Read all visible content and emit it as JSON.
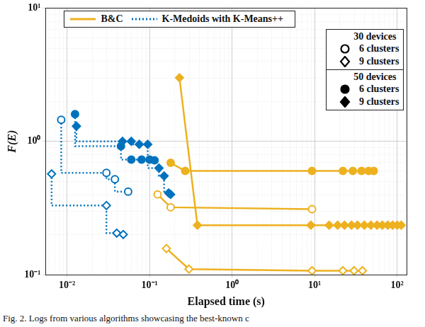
{
  "chart_data": {
    "type": "line",
    "log": true,
    "grid": true,
    "legend": "top",
    "x_label": "Elapsed time (s)",
    "y_label": "F(E)",
    "caption": "Fig. 2.  Logs from various algorithms showcasing the best-known c",
    "xlim": [
      0.0055,
      130
    ],
    "ylim": [
      0.1,
      10
    ],
    "xticks": [
      {
        "value": 0.01,
        "label": "10⁻²"
      },
      {
        "value": 0.1,
        "label": "10⁻¹"
      },
      {
        "value": 1,
        "label": "10⁰"
      },
      {
        "value": 10,
        "label": "10¹"
      },
      {
        "value": 100,
        "label": "10²"
      }
    ],
    "yticks": [
      {
        "value": 0.1,
        "label": "10⁻¹"
      },
      {
        "value": 1,
        "label": "10⁰"
      },
      {
        "value": 10,
        "label": "10¹"
      }
    ],
    "legend_groups": [
      {
        "title": "30 devices",
        "entries": [
          {
            "label": "6 clusters",
            "marker": "circle-open"
          },
          {
            "label": "9 clusters",
            "marker": "diamond-open"
          }
        ]
      },
      {
        "title": "50 devices",
        "entries": [
          {
            "label": "6 clusters",
            "marker": "circle"
          },
          {
            "label": "9 clusters",
            "marker": "diamond"
          }
        ]
      }
    ],
    "series": [
      {
        "name": "B&C",
        "devices": "30 devices",
        "clusters": "6 clusters",
        "type": "line",
        "color": "#edb120",
        "line_style": "solid",
        "marker": "circle-open",
        "x": [
          0.125,
          0.18,
          9.3
        ],
        "values": [
          0.4,
          0.32,
          0.31
        ]
      },
      {
        "name": "B&C",
        "devices": "30 devices",
        "clusters": "9 clusters",
        "type": "line",
        "color": "#edb120",
        "line_style": "solid",
        "marker": "diamond-open",
        "x": [
          0.16,
          0.3,
          9.3,
          22,
          30,
          38
        ],
        "values": [
          0.157,
          0.11,
          0.107,
          0.107,
          0.107,
          0.107
        ]
      },
      {
        "name": "B&C",
        "devices": "50 devices",
        "clusters": "6 clusters",
        "type": "line",
        "color": "#edb120",
        "line_style": "solid",
        "marker": "circle",
        "x": [
          0.18,
          0.27,
          9.3,
          22,
          29,
          37,
          45,
          52
        ],
        "values": [
          0.69,
          0.6,
          0.6,
          0.6,
          0.6,
          0.6,
          0.6,
          0.6
        ]
      },
      {
        "name": "B&C",
        "devices": "50 devices",
        "clusters": "9 clusters",
        "type": "line",
        "color": "#edb120",
        "line_style": "solid",
        "marker": "diamond",
        "x": [
          0.23,
          0.38,
          9,
          15,
          19,
          23,
          28,
          33,
          40,
          48,
          57,
          66,
          77,
          88,
          100,
          112
        ],
        "values": [
          3.0,
          0.235,
          0.235,
          0.235,
          0.235,
          0.235,
          0.235,
          0.235,
          0.235,
          0.235,
          0.235,
          0.235,
          0.235,
          0.235,
          0.235,
          0.235
        ]
      },
      {
        "name": "K-Medoids with K-Means++",
        "devices": "30 devices",
        "clusters": "6 clusters",
        "type": "step",
        "color": "#0072bd",
        "line_style": "dotted",
        "marker": "circle-open",
        "x": [
          0.0085,
          0.03,
          0.038,
          0.055
        ],
        "values": [
          1.45,
          0.58,
          0.52,
          0.42
        ]
      },
      {
        "name": "K-Medoids with K-Means++",
        "devices": "30 devices",
        "clusters": "9 clusters",
        "type": "step",
        "color": "#0072bd",
        "line_style": "dotted",
        "marker": "diamond-open",
        "x": [
          0.0065,
          0.03,
          0.04,
          0.048
        ],
        "values": [
          0.57,
          0.33,
          0.205,
          0.2
        ]
      },
      {
        "name": "K-Medoids with K-Means++",
        "devices": "50 devices",
        "clusters": "6 clusters",
        "type": "step",
        "color": "#0072bd",
        "line_style": "dotted",
        "marker": "circle",
        "x": [
          0.0125,
          0.045,
          0.06,
          0.08,
          0.1,
          0.115
        ],
        "values": [
          1.6,
          0.92,
          0.73,
          0.73,
          0.73,
          0.72
        ]
      },
      {
        "name": "K-Medoids with K-Means++",
        "devices": "50 devices",
        "clusters": "9 clusters",
        "type": "step",
        "color": "#0072bd",
        "line_style": "dotted",
        "marker": "diamond",
        "x": [
          0.013,
          0.047,
          0.06,
          0.075,
          0.095,
          0.13,
          0.15,
          0.17,
          0.18
        ],
        "values": [
          1.3,
          1.0,
          1.0,
          0.95,
          0.95,
          0.63,
          0.55,
          0.41,
          0.4
        ]
      }
    ]
  }
}
